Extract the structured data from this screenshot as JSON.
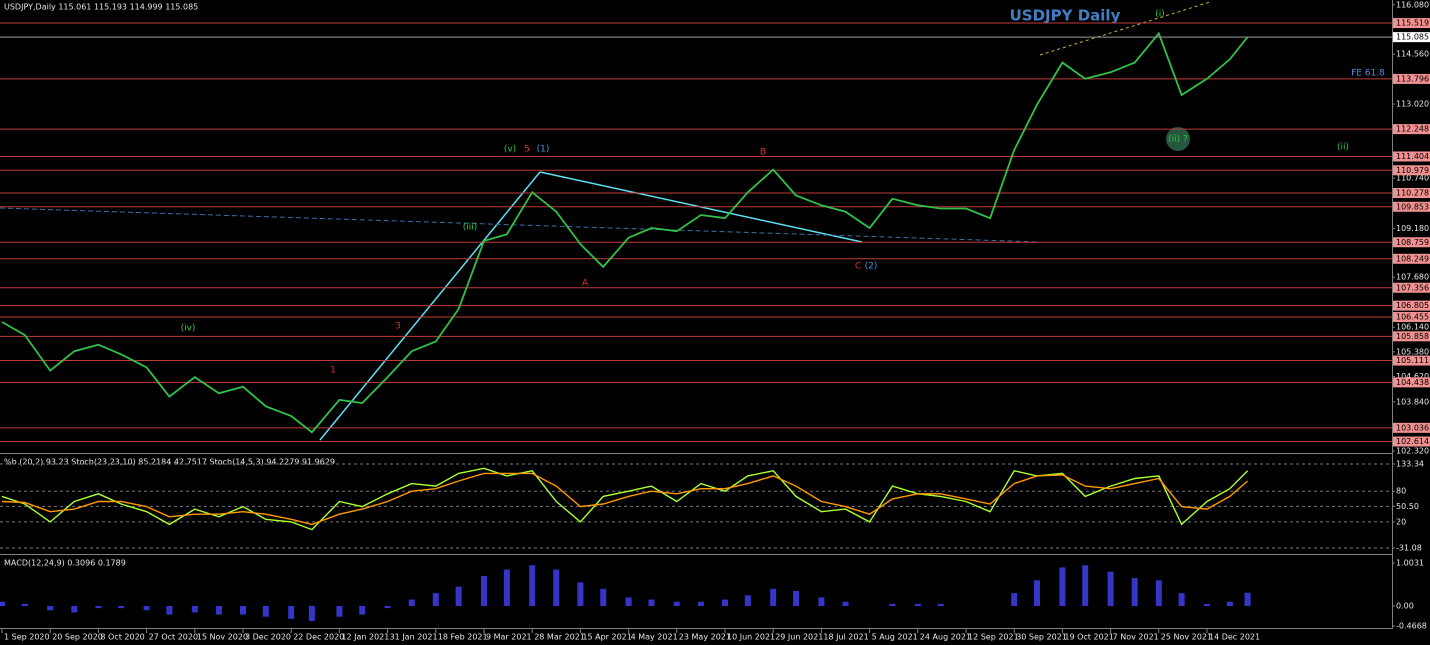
{
  "chart_data": [
    {
      "type": "line",
      "title": "USDJPY Daily",
      "subtitle": "USDJPY,Daily  115.061 115.193 114.999 115.085",
      "x": [
        "2020-09-01",
        "2020-09-10",
        "2020-09-20",
        "2020-09-29",
        "2020-10-08",
        "2020-10-17",
        "2020-10-27",
        "2020-11-05",
        "2020-11-15",
        "2020-11-24",
        "2020-12-03",
        "2020-12-12",
        "2020-12-22",
        "2020-12-31",
        "2021-01-12",
        "2021-01-21",
        "2021-01-31",
        "2021-02-09",
        "2021-02-18",
        "2021-02-27",
        "2021-03-09",
        "2021-03-18",
        "2021-03-28",
        "2021-04-06",
        "2021-04-15",
        "2021-04-24",
        "2021-05-04",
        "2021-05-13",
        "2021-05-23",
        "2021-06-01",
        "2021-06-10",
        "2021-06-19",
        "2021-06-29",
        "2021-07-08",
        "2021-07-18",
        "2021-07-27",
        "2021-08-05",
        "2021-08-14",
        "2021-08-24",
        "2021-09-02",
        "2021-09-12",
        "2021-09-21",
        "2021-09-30",
        "2021-10-09",
        "2021-10-19",
        "2021-10-28",
        "2021-11-07",
        "2021-11-16",
        "2021-11-25",
        "2021-12-04",
        "2021-12-14",
        "2021-12-23",
        "2021-12-30"
      ],
      "values": [
        106.3,
        105.9,
        104.8,
        105.4,
        105.6,
        105.3,
        104.9,
        104.0,
        104.6,
        104.1,
        104.3,
        103.7,
        103.4,
        102.9,
        103.9,
        103.8,
        104.6,
        105.4,
        105.7,
        106.7,
        108.8,
        109.0,
        110.3,
        109.7,
        108.7,
        108.0,
        108.9,
        109.2,
        109.1,
        109.6,
        109.5,
        110.3,
        111.0,
        110.2,
        109.9,
        109.7,
        109.2,
        110.1,
        109.9,
        109.8,
        109.8,
        109.5,
        111.6,
        113.0,
        114.3,
        113.8,
        114.0,
        114.3,
        115.2,
        113.3,
        113.8,
        114.4,
        115.085
      ],
      "color": "#2fc24a",
      "ylim": [
        102.26,
        116.23
      ],
      "yticks": [
        {
          "value": 116.08,
          "label": "116.080"
        },
        {
          "value": 114.56,
          "label": "114.560"
        },
        {
          "value": 113.02,
          "label": "113.020"
        },
        {
          "value": 110.74,
          "label": "110.740"
        },
        {
          "value": 109.18,
          "label": "109.180"
        },
        {
          "value": 107.68,
          "label": "107.680"
        },
        {
          "value": 106.14,
          "label": "106.140"
        },
        {
          "value": 105.38,
          "label": "105.380"
        },
        {
          "value": 104.62,
          "label": "104.620"
        },
        {
          "value": 103.84,
          "label": "103.840"
        },
        {
          "value": 102.32,
          "label": "102.320"
        }
      ],
      "xticks": [
        {
          "value": "2020-09-01",
          "label": "1 Sep 2020"
        },
        {
          "value": "2020-09-20",
          "label": "20 Sep 2020"
        },
        {
          "value": "2020-10-08",
          "label": "8 Oct 2020"
        },
        {
          "value": "2020-10-27",
          "label": "27 Oct 2020"
        },
        {
          "value": "2020-11-15",
          "label": "15 Nov 2020"
        },
        {
          "value": "2020-12-03",
          "label": "3 Dec 2020"
        },
        {
          "value": "2020-12-22",
          "label": "22 Dec 2020"
        },
        {
          "value": "2021-01-12",
          "label": "12 Jan 2021"
        },
        {
          "value": "2021-01-31",
          "label": "31 Jan 2021"
        },
        {
          "value": "2021-02-18",
          "label": "18 Feb 2021"
        },
        {
          "value": "2021-03-09",
          "label": "9 Mar 2021"
        },
        {
          "value": "2021-03-28",
          "label": "28 Mar 2021"
        },
        {
          "value": "2021-04-15",
          "label": "15 Apr 2021"
        },
        {
          "value": "2021-05-04",
          "label": "4 May 2021"
        },
        {
          "value": "2021-05-23",
          "label": "23 May 2021"
        },
        {
          "value": "2021-06-10",
          "label": "10 Jun 2021"
        },
        {
          "value": "2021-06-29",
          "label": "29 Jun 2021"
        },
        {
          "value": "2021-07-18",
          "label": "18 Jul 2021"
        },
        {
          "value": "2021-08-05",
          "label": "5 Aug 2021"
        },
        {
          "value": "2021-08-24",
          "label": "24 Aug 2021"
        },
        {
          "value": "2021-09-12",
          "label": "12 Sep 2021"
        },
        {
          "value": "2021-09-30",
          "label": "30 Sep 2021"
        },
        {
          "value": "2021-10-19",
          "label": "19 Oct 2021"
        },
        {
          "value": "2021-11-07",
          "label": "7 Nov 2021"
        },
        {
          "value": "2021-11-25",
          "label": "25 Nov 2021"
        },
        {
          "value": "2021-12-14",
          "label": "14 Dec 2021"
        }
      ],
      "levels": [
        115.519,
        113.796,
        112.248,
        111.404,
        110.979,
        110.278,
        109.853,
        108.759,
        108.249,
        107.356,
        106.805,
        106.455,
        105.858,
        105.111,
        104.438,
        103.036,
        102.614
      ],
      "level_color": "#c23b3b",
      "annotations": [
        {
          "text": "(v)",
          "color": "#2ecc40"
        },
        {
          "text": "5",
          "color": "#e03030"
        },
        {
          "text": "(1)",
          "color": "#4a90d9"
        },
        {
          "text": "B",
          "color": "#e03030"
        },
        {
          "text": "A",
          "color": "#e03030"
        },
        {
          "text": "C",
          "color": "#e03030"
        },
        {
          "text": "(2)",
          "color": "#4a90d9"
        },
        {
          "text": "(i)",
          "color": "#2ecc40"
        },
        {
          "text": "(ii) ?",
          "color": "#2ecc40"
        },
        {
          "text": "(ii)",
          "color": "#2ecc40"
        },
        {
          "text": "(iv)",
          "color": "#2ecc40"
        },
        {
          "text": "1",
          "color": "#e03030"
        },
        {
          "text": "3",
          "color": "#e03030"
        },
        {
          "text": "(iii)",
          "color": "#2ecc40"
        },
        {
          "text": "FE 61.8",
          "color": "#4a90d9"
        }
      ]
    },
    {
      "type": "line",
      "title": "%b (20,2) 93.23 Stoch(23,23,10) 85.2184 42.7517 Stoch(14,5,3) 94.2279 91.9629",
      "series": [
        {
          "color": "#adff2f",
          "values": [
            70,
            55,
            20,
            60,
            75,
            55,
            40,
            15,
            45,
            30,
            50,
            25,
            20,
            5,
            60,
            50,
            75,
            95,
            90,
            115,
            125,
            110,
            120,
            60,
            20,
            70,
            80,
            90,
            60,
            95,
            80,
            110,
            120,
            70,
            40,
            45,
            20,
            90,
            75,
            70,
            60,
            40,
            120,
            110,
            115,
            70,
            90,
            105,
            110,
            15,
            60,
            85,
            120
          ]
        },
        {
          "color": "#ff9900",
          "values": [
            60,
            58,
            40,
            45,
            60,
            60,
            50,
            30,
            35,
            35,
            40,
            35,
            25,
            15,
            35,
            45,
            60,
            80,
            85,
            100,
            115,
            115,
            115,
            90,
            50,
            55,
            70,
            80,
            75,
            85,
            85,
            95,
            110,
            90,
            60,
            50,
            35,
            65,
            75,
            75,
            65,
            55,
            95,
            110,
            112,
            90,
            85,
            95,
            105,
            50,
            45,
            70,
            100
          ]
        }
      ],
      "ylim": [
        -40.9,
        150.96
      ],
      "yticks": [
        133.34,
        80,
        {
          "value": 50.5,
          "label": "50.50"
        },
        20,
        -31.08
      ]
    },
    {
      "type": "bar",
      "title": "MACD(12,24,9) 0.3096 0.1789",
      "values": [
        0.1,
        0.05,
        -0.1,
        -0.15,
        -0.05,
        -0.05,
        -0.1,
        -0.2,
        -0.15,
        -0.2,
        -0.2,
        -0.25,
        -0.3,
        -0.35,
        -0.25,
        -0.2,
        -0.05,
        0.15,
        0.3,
        0.45,
        0.7,
        0.85,
        0.95,
        0.85,
        0.55,
        0.4,
        0.2,
        0.15,
        0.1,
        0.1,
        0.15,
        0.25,
        0.4,
        0.35,
        0.2,
        0.1,
        0.0,
        0.05,
        0.05,
        0.05,
        0.0,
        0.0,
        0.3,
        0.6,
        0.9,
        0.95,
        0.8,
        0.65,
        0.6,
        0.3,
        0.05,
        0.1,
        0.31
      ],
      "color": "#3535c8",
      "ylim": [
        -0.513,
        1.166
      ],
      "yticks": [
        1.0031,
        {
          "value": 0,
          "label": "0.00"
        },
        -0.4668
      ]
    }
  ]
}
